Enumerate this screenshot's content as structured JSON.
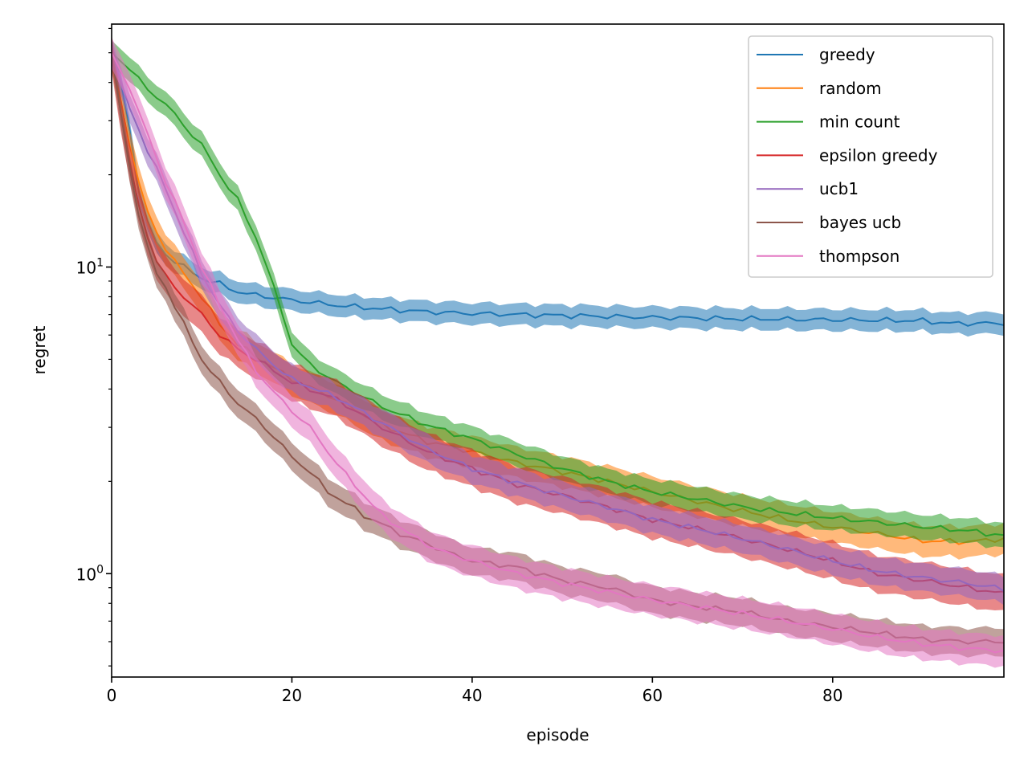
{
  "chart_data": {
    "type": "line",
    "xlabel": "episode",
    "ylabel": "regret",
    "xlim": [
      0,
      99
    ],
    "ylim": [
      0.46,
      62
    ],
    "yscale": "log",
    "grid": false,
    "legend_position": "top-right",
    "x_ticks": [
      0,
      20,
      40,
      60,
      80
    ],
    "x_tick_labels": [
      "0",
      "20",
      "40",
      "60",
      "80"
    ],
    "y_ticks": [
      1,
      10
    ],
    "y_tick_labels": [
      {
        "base": "10",
        "exp": "0"
      },
      {
        "base": "10",
        "exp": "1"
      }
    ],
    "series": [
      {
        "name": "greedy",
        "color": "#1f77b4",
        "band": 0.035,
        "points": [
          [
            0,
            50
          ],
          [
            1,
            40
          ],
          [
            2,
            28
          ],
          [
            3,
            18
          ],
          [
            4,
            14
          ],
          [
            5,
            12
          ],
          [
            6,
            11
          ],
          [
            8,
            10
          ],
          [
            10,
            9.2
          ],
          [
            12,
            8.8
          ],
          [
            14,
            8.3
          ],
          [
            16,
            8.1
          ],
          [
            20,
            7.8
          ],
          [
            25,
            7.5
          ],
          [
            30,
            7.3
          ],
          [
            35,
            7.15
          ],
          [
            40,
            7.05
          ],
          [
            50,
            6.95
          ],
          [
            60,
            6.85
          ],
          [
            70,
            6.78
          ],
          [
            80,
            6.73
          ],
          [
            90,
            6.68
          ],
          [
            93,
            6.55
          ],
          [
            99,
            6.55
          ]
        ]
      },
      {
        "name": "random",
        "color": "#ff7f0e",
        "band": 0.05,
        "points": [
          [
            0,
            50
          ],
          [
            1,
            35
          ],
          [
            2,
            25
          ],
          [
            3,
            19
          ],
          [
            4,
            15
          ],
          [
            5,
            13
          ],
          [
            6,
            11.5
          ],
          [
            8,
            9.5
          ],
          [
            10,
            8
          ],
          [
            12,
            6.5
          ],
          [
            14,
            5.6
          ],
          [
            16,
            5.1
          ],
          [
            18,
            4.7
          ],
          [
            20,
            4.3
          ],
          [
            25,
            3.7
          ],
          [
            30,
            3.05
          ],
          [
            35,
            2.7
          ],
          [
            40,
            2.5
          ],
          [
            45,
            2.3
          ],
          [
            50,
            2.15
          ],
          [
            55,
            2.0
          ],
          [
            60,
            1.85
          ],
          [
            65,
            1.72
          ],
          [
            70,
            1.6
          ],
          [
            75,
            1.5
          ],
          [
            80,
            1.42
          ],
          [
            85,
            1.35
          ],
          [
            90,
            1.28
          ],
          [
            95,
            1.27
          ],
          [
            99,
            1.3
          ]
        ]
      },
      {
        "name": "min count",
        "color": "#2ca02c",
        "band": 0.04,
        "points": [
          [
            0,
            50
          ],
          [
            2,
            44
          ],
          [
            4,
            38
          ],
          [
            6,
            34
          ],
          [
            8,
            29
          ],
          [
            10,
            25
          ],
          [
            12,
            20
          ],
          [
            14,
            16.5
          ],
          [
            16,
            12.5
          ],
          [
            17,
            10.5
          ],
          [
            18,
            8.5
          ],
          [
            19,
            7
          ],
          [
            20,
            5.6
          ],
          [
            22,
            4.8
          ],
          [
            25,
            4.2
          ],
          [
            30,
            3.5
          ],
          [
            35,
            3.05
          ],
          [
            40,
            2.75
          ],
          [
            45,
            2.45
          ],
          [
            50,
            2.2
          ],
          [
            55,
            2.0
          ],
          [
            60,
            1.85
          ],
          [
            65,
            1.75
          ],
          [
            70,
            1.65
          ],
          [
            75,
            1.58
          ],
          [
            80,
            1.52
          ],
          [
            85,
            1.47
          ],
          [
            90,
            1.42
          ],
          [
            95,
            1.38
          ],
          [
            99,
            1.33
          ]
        ]
      },
      {
        "name": "epsilon greedy",
        "color": "#d62728",
        "band": 0.06,
        "points": [
          [
            0,
            50
          ],
          [
            1,
            32
          ],
          [
            2,
            22
          ],
          [
            3,
            16
          ],
          [
            4,
            12.5
          ],
          [
            5,
            10.5
          ],
          [
            6,
            9.3
          ],
          [
            8,
            8
          ],
          [
            10,
            7
          ],
          [
            12,
            6
          ],
          [
            14,
            5.4
          ],
          [
            16,
            5
          ],
          [
            18,
            4.6
          ],
          [
            20,
            4.2
          ],
          [
            25,
            3.7
          ],
          [
            30,
            3.0
          ],
          [
            35,
            2.5
          ],
          [
            40,
            2.2
          ],
          [
            45,
            1.95
          ],
          [
            50,
            1.8
          ],
          [
            55,
            1.65
          ],
          [
            60,
            1.5
          ],
          [
            65,
            1.4
          ],
          [
            70,
            1.3
          ],
          [
            75,
            1.2
          ],
          [
            80,
            1.1
          ],
          [
            85,
            1.0
          ],
          [
            90,
            0.95
          ],
          [
            95,
            0.9
          ],
          [
            99,
            0.86
          ]
        ]
      },
      {
        "name": "ucb1",
        "color": "#9467bd",
        "band": 0.045,
        "points": [
          [
            0,
            50
          ],
          [
            2,
            33
          ],
          [
            4,
            24
          ],
          [
            6,
            18
          ],
          [
            8,
            13
          ],
          [
            10,
            9.5
          ],
          [
            12,
            7.5
          ],
          [
            14,
            6.2
          ],
          [
            16,
            5.4
          ],
          [
            18,
            4.8
          ],
          [
            20,
            4.3
          ],
          [
            25,
            3.75
          ],
          [
            30,
            3.1
          ],
          [
            35,
            2.55
          ],
          [
            40,
            2.2
          ],
          [
            45,
            1.98
          ],
          [
            50,
            1.8
          ],
          [
            55,
            1.65
          ],
          [
            60,
            1.5
          ],
          [
            65,
            1.4
          ],
          [
            70,
            1.3
          ],
          [
            75,
            1.2
          ],
          [
            80,
            1.1
          ],
          [
            85,
            1.02
          ],
          [
            90,
            0.97
          ],
          [
            95,
            0.93
          ],
          [
            99,
            0.89
          ]
        ]
      },
      {
        "name": "bayes ucb",
        "color": "#8c564b",
        "band": 0.045,
        "points": [
          [
            0,
            50
          ],
          [
            1,
            32
          ],
          [
            2,
            21
          ],
          [
            3,
            15
          ],
          [
            4,
            11.5
          ],
          [
            5,
            9.5
          ],
          [
            6,
            8.6
          ],
          [
            8,
            6.5
          ],
          [
            10,
            5
          ],
          [
            12,
            4.2
          ],
          [
            14,
            3.6
          ],
          [
            16,
            3.2
          ],
          [
            18,
            2.8
          ],
          [
            20,
            2.4
          ],
          [
            22,
            2.15
          ],
          [
            24,
            1.85
          ],
          [
            26,
            1.7
          ],
          [
            28,
            1.55
          ],
          [
            30,
            1.45
          ],
          [
            32,
            1.35
          ],
          [
            35,
            1.25
          ],
          [
            38,
            1.15
          ],
          [
            40,
            1.1
          ],
          [
            45,
            1.05
          ],
          [
            50,
            0.95
          ],
          [
            55,
            0.9
          ],
          [
            60,
            0.82
          ],
          [
            65,
            0.78
          ],
          [
            70,
            0.75
          ],
          [
            75,
            0.7
          ],
          [
            80,
            0.67
          ],
          [
            85,
            0.64
          ],
          [
            90,
            0.61
          ],
          [
            95,
            0.6
          ],
          [
            99,
            0.6
          ]
        ]
      },
      {
        "name": "thompson",
        "color": "#e377c2",
        "band": 0.05,
        "points": [
          [
            0,
            50
          ],
          [
            2,
            38
          ],
          [
            4,
            27
          ],
          [
            6,
            19
          ],
          [
            8,
            14
          ],
          [
            10,
            10
          ],
          [
            12,
            7.5
          ],
          [
            14,
            5.8
          ],
          [
            16,
            4.6
          ],
          [
            18,
            3.9
          ],
          [
            20,
            3.4
          ],
          [
            22,
            3.0
          ],
          [
            24,
            2.5
          ],
          [
            26,
            2.1
          ],
          [
            28,
            1.8
          ],
          [
            30,
            1.55
          ],
          [
            33,
            1.35
          ],
          [
            36,
            1.2
          ],
          [
            40,
            1.1
          ],
          [
            45,
            1.0
          ],
          [
            50,
            0.93
          ],
          [
            55,
            0.87
          ],
          [
            60,
            0.82
          ],
          [
            65,
            0.78
          ],
          [
            70,
            0.74
          ],
          [
            75,
            0.7
          ],
          [
            80,
            0.66
          ],
          [
            85,
            0.62
          ],
          [
            90,
            0.59
          ],
          [
            95,
            0.57
          ],
          [
            99,
            0.56
          ]
        ]
      }
    ]
  }
}
